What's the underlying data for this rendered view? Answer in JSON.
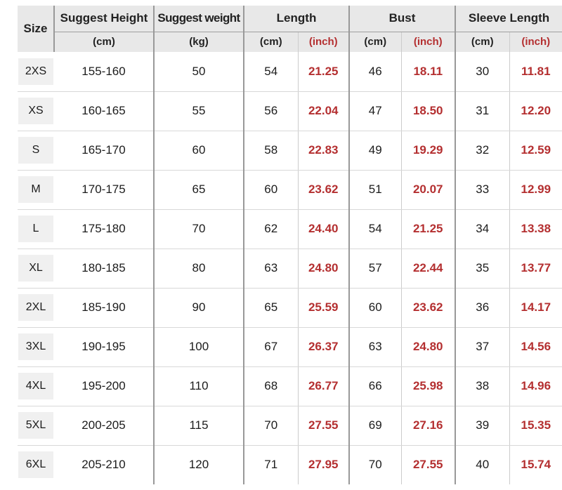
{
  "colors": {
    "red": "#b42f30",
    "header_bg": "#e8e8e8",
    "chip_bg": "#f0f0f0",
    "line_dark": "#999999",
    "line_light": "#cccccc",
    "row_line": "#d8d8d8",
    "text": "#1c1c1c"
  },
  "header": {
    "size_label": "Size",
    "groups": [
      {
        "label": "Suggest Height",
        "subs": [
          {
            "label": "(cm)",
            "red": false
          }
        ]
      },
      {
        "label": "Suggest weight",
        "subs": [
          {
            "label": "(kg)",
            "red": false
          }
        ]
      },
      {
        "label": "Length",
        "subs": [
          {
            "label": "(cm)",
            "red": false
          },
          {
            "label": "(inch)",
            "red": true
          }
        ]
      },
      {
        "label": "Bust",
        "subs": [
          {
            "label": "(cm)",
            "red": false
          },
          {
            "label": "(inch)",
            "red": true
          }
        ]
      },
      {
        "label": "Sleeve Length",
        "subs": [
          {
            "label": "(cm)",
            "red": false
          },
          {
            "label": "(inch)",
            "red": true
          }
        ]
      }
    ]
  },
  "rows": [
    {
      "size": "2XS",
      "height": "155-160",
      "weight": "50",
      "length_cm": "54",
      "length_inch": "21.25",
      "bust_cm": "46",
      "bust_inch": "18.11",
      "sleeve_cm": "30",
      "sleeve_inch": "11.81"
    },
    {
      "size": "XS",
      "height": "160-165",
      "weight": "55",
      "length_cm": "56",
      "length_inch": "22.04",
      "bust_cm": "47",
      "bust_inch": "18.50",
      "sleeve_cm": "31",
      "sleeve_inch": "12.20"
    },
    {
      "size": "S",
      "height": "165-170",
      "weight": "60",
      "length_cm": "58",
      "length_inch": "22.83",
      "bust_cm": "49",
      "bust_inch": "19.29",
      "sleeve_cm": "32",
      "sleeve_inch": "12.59"
    },
    {
      "size": "M",
      "height": "170-175",
      "weight": "65",
      "length_cm": "60",
      "length_inch": "23.62",
      "bust_cm": "51",
      "bust_inch": "20.07",
      "sleeve_cm": "33",
      "sleeve_inch": "12.99"
    },
    {
      "size": "L",
      "height": "175-180",
      "weight": "70",
      "length_cm": "62",
      "length_inch": "24.40",
      "bust_cm": "54",
      "bust_inch": "21.25",
      "sleeve_cm": "34",
      "sleeve_inch": "13.38"
    },
    {
      "size": "XL",
      "height": "180-185",
      "weight": "80",
      "length_cm": "63",
      "length_inch": "24.80",
      "bust_cm": "57",
      "bust_inch": "22.44",
      "sleeve_cm": "35",
      "sleeve_inch": "13.77"
    },
    {
      "size": "2XL",
      "height": "185-190",
      "weight": "90",
      "length_cm": "65",
      "length_inch": "25.59",
      "bust_cm": "60",
      "bust_inch": "23.62",
      "sleeve_cm": "36",
      "sleeve_inch": "14.17"
    },
    {
      "size": "3XL",
      "height": "190-195",
      "weight": "100",
      "length_cm": "67",
      "length_inch": "26.37",
      "bust_cm": "63",
      "bust_inch": "24.80",
      "sleeve_cm": "37",
      "sleeve_inch": "14.56"
    },
    {
      "size": "4XL",
      "height": "195-200",
      "weight": "110",
      "length_cm": "68",
      "length_inch": "26.77",
      "bust_cm": "66",
      "bust_inch": "25.98",
      "sleeve_cm": "38",
      "sleeve_inch": "14.96"
    },
    {
      "size": "5XL",
      "height": "200-205",
      "weight": "115",
      "length_cm": "70",
      "length_inch": "27.55",
      "bust_cm": "69",
      "bust_inch": "27.16",
      "sleeve_cm": "39",
      "sleeve_inch": "15.35"
    },
    {
      "size": "6XL",
      "height": "205-210",
      "weight": "120",
      "length_cm": "71",
      "length_inch": "27.95",
      "bust_cm": "70",
      "bust_inch": "27.55",
      "sleeve_cm": "40",
      "sleeve_inch": "15.74"
    }
  ]
}
